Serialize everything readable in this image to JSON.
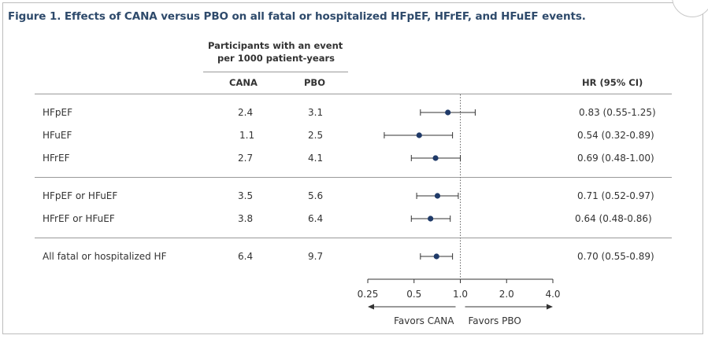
{
  "title": "Figure 1. Effects of CANA versus PBO on all fatal or hospitalized HFpEF, HFrEF, and HFuEF events.",
  "header": {
    "group_line1": "Participants with an event",
    "group_line2": "per 1000 patient-years",
    "col_cana": "CANA",
    "col_pbo": "PBO",
    "col_hr": "HR (95% CI)"
  },
  "rows": [
    {
      "label": "HFpEF",
      "cana": "2.4",
      "pbo": "3.1",
      "hr_text": "0.83 (0.55-1.25)"
    },
    {
      "label": "HFuEF",
      "cana": "1.1",
      "pbo": "2.5",
      "hr_text": "0.54 (0.32-0.89)"
    },
    {
      "label": "HFrEF",
      "cana": "2.7",
      "pbo": "4.1",
      "hr_text": "0.69 (0.48-1.00)"
    },
    {
      "label": "HFpEF or HFuEF",
      "cana": "3.5",
      "pbo": "5.6",
      "hr_text": "0.71 (0.52-0.97)"
    },
    {
      "label": "HFrEF or HFuEF",
      "cana": "3.8",
      "pbo": "6.4",
      "hr_text": "0.64 (0.48-0.86)"
    },
    {
      "label": "All fatal or hospitalized HF",
      "cana": "6.4",
      "pbo": "9.7",
      "hr_text": "0.70 (0.55-0.89)"
    }
  ],
  "axis": {
    "favors_left": "Favors CANA",
    "favors_right": "Favors PBO"
  },
  "colors": {
    "title": "#2e4a6b",
    "marker": "#1f3a68"
  },
  "chart_data": {
    "type": "forest",
    "x_scale": "log",
    "xlim": [
      0.25,
      4.0
    ],
    "x_ticks": [
      0.25,
      0.5,
      1.0,
      2.0,
      4.0
    ],
    "x_tick_labels": [
      "0.25",
      "0.5",
      "1.0",
      "2.0",
      "4.0"
    ],
    "reference_line": 1.0,
    "categories": [
      "HFpEF",
      "HFuEF",
      "HFrEF",
      "HFpEF or HFuEF",
      "HFrEF or HFuEF",
      "All fatal or hospitalized HF"
    ],
    "hr": [
      0.83,
      0.54,
      0.69,
      0.71,
      0.64,
      0.7
    ],
    "ci_low": [
      0.55,
      0.32,
      0.48,
      0.52,
      0.48,
      0.55
    ],
    "ci_high": [
      1.25,
      0.89,
      1.0,
      0.97,
      0.86,
      0.89
    ]
  }
}
